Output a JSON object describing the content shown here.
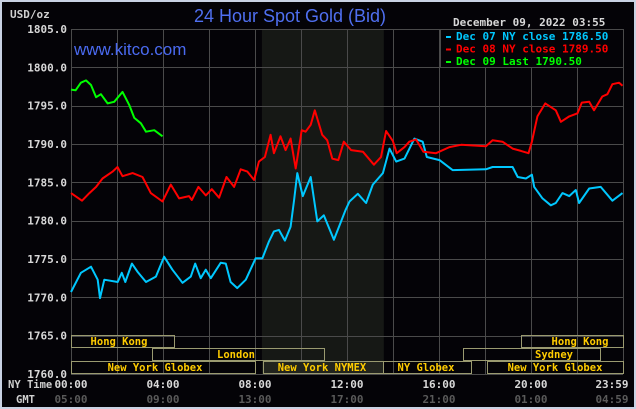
{
  "chart_data": {
    "type": "line",
    "title": "24 Hour Spot Gold (Bid)",
    "unit_label": "USD/oz",
    "watermark": "www.kitco.com",
    "timestamp": "December 09, 2022 03:55",
    "x_row_labels": [
      "NY Time",
      "GMT"
    ],
    "x_ticks_ny": [
      "00:00",
      "04:00",
      "08:00",
      "12:00",
      "16:00",
      "20:00",
      "23:59"
    ],
    "x_ticks_gmt": [
      "05:00",
      "09:00",
      "13:00",
      "17:00",
      "21:00",
      "01:00",
      "04:59"
    ],
    "xlim_hours": [
      0,
      24
    ],
    "ylim": [
      1760,
      1805
    ],
    "y_ticks": [
      "1805.0",
      "1800.0",
      "1795.0",
      "1790.0",
      "1785.0",
      "1780.0",
      "1775.0",
      "1770.0",
      "1765.0",
      "1760.0"
    ],
    "grid": true,
    "legend_position": "top-right",
    "highlight_region_hours": [
      8.3,
      13.6
    ],
    "colors": {
      "background": "#040307",
      "grid": "#4a4a4a",
      "title": "#4f6ff0",
      "session_text": "#ffcc00",
      "session_border": "#9a9a70"
    },
    "sessions": {
      "hong_kong": "Hong Kong",
      "london": "London",
      "ny_globex": "New York Globex",
      "ny_nymex": "New York NYMEX",
      "ny_globex_short": "NY Globex",
      "sydney": "Sydney",
      "hong_kong_2": "Hong Kong",
      "ny_globex_2": "New York Globex"
    },
    "series": [
      {
        "name": "Dec 07 NY close 1786.50",
        "color": "#00c8ff",
        "x": [
          0,
          0.43,
          0.87,
          1.16,
          1.26,
          1.45,
          2.03,
          2.21,
          2.36,
          2.65,
          2.9,
          3.26,
          3.69,
          4.05,
          4.41,
          4.85,
          5.21,
          5.4,
          5.64,
          5.86,
          6.08,
          6.51,
          6.73,
          6.94,
          7.23,
          7.6,
          8.03,
          8.32,
          8.61,
          8.82,
          9.04,
          9.3,
          9.55,
          9.7,
          9.84,
          10.08,
          10.42,
          10.71,
          10.99,
          11.43,
          11.94,
          12.11,
          12.47,
          12.83,
          13.12,
          13.56,
          13.85,
          14.14,
          14.5,
          14.93,
          15.29,
          15.47,
          16.02,
          16.59,
          18.04,
          18.33,
          18.62,
          19.2,
          19.42,
          19.78,
          20.04,
          20.14,
          20.5,
          20.86,
          21.08,
          21.37,
          21.66,
          21.95,
          22.09,
          22.53,
          23.03,
          23.54,
          23.98
        ],
        "y": [
          1770.7,
          1773.2,
          1774.0,
          1772.3,
          1769.9,
          1772.3,
          1772.0,
          1773.2,
          1772.0,
          1774.4,
          1773.3,
          1772.0,
          1772.7,
          1775.3,
          1773.6,
          1771.9,
          1772.7,
          1774.4,
          1772.5,
          1773.6,
          1772.5,
          1774.5,
          1774.4,
          1772.0,
          1771.2,
          1772.3,
          1775.1,
          1775.1,
          1777.3,
          1778.6,
          1778.8,
          1777.4,
          1779.2,
          1782.7,
          1786.2,
          1783.2,
          1785.7,
          1779.9,
          1780.7,
          1777.5,
          1781.4,
          1782.5,
          1783.5,
          1782.3,
          1784.7,
          1786.2,
          1789.4,
          1787.7,
          1788.1,
          1790.7,
          1790.3,
          1788.3,
          1787.9,
          1786.6,
          1786.7,
          1787.0,
          1787.0,
          1787.0,
          1785.7,
          1785.5,
          1786.0,
          1784.4,
          1782.9,
          1782.0,
          1782.3,
          1783.6,
          1783.2,
          1784.0,
          1782.3,
          1784.2,
          1784.4,
          1782.6,
          1783.6
        ]
      },
      {
        "name": "Dec 08 NY close 1789.50",
        "color": "#ff0000",
        "x": [
          0,
          0.48,
          0.8,
          1.09,
          1.37,
          1.81,
          2.02,
          2.24,
          2.68,
          3.11,
          3.47,
          3.98,
          4.34,
          4.7,
          5.13,
          5.25,
          5.54,
          5.86,
          6.12,
          6.44,
          6.76,
          7.09,
          7.38,
          7.67,
          7.96,
          8.17,
          8.43,
          8.68,
          8.82,
          9.11,
          9.33,
          9.55,
          9.77,
          10.03,
          10.2,
          10.42,
          10.6,
          10.92,
          11.14,
          11.36,
          11.62,
          11.86,
          12.18,
          12.69,
          13.17,
          13.48,
          13.7,
          13.99,
          14.16,
          14.5,
          14.71,
          15.0,
          15.32,
          15.87,
          16.45,
          16.96,
          18.04,
          18.33,
          18.76,
          19.2,
          19.56,
          19.89,
          20.04,
          20.28,
          20.62,
          21.08,
          21.3,
          21.66,
          22.02,
          22.21,
          22.53,
          22.74,
          23.1,
          23.32,
          23.54,
          23.83,
          23.98
        ],
        "y": [
          1783.6,
          1782.6,
          1783.6,
          1784.4,
          1785.5,
          1786.4,
          1787.0,
          1785.8,
          1786.2,
          1785.7,
          1783.6,
          1782.5,
          1784.7,
          1782.9,
          1783.2,
          1782.7,
          1784.4,
          1783.3,
          1784.1,
          1783.0,
          1785.7,
          1784.4,
          1786.7,
          1786.4,
          1785.3,
          1787.7,
          1788.3,
          1791.2,
          1788.8,
          1791.0,
          1789.2,
          1790.7,
          1786.8,
          1791.8,
          1791.6,
          1792.5,
          1794.4,
          1791.2,
          1790.5,
          1788.1,
          1787.9,
          1790.3,
          1789.2,
          1789.0,
          1787.3,
          1788.3,
          1791.7,
          1790.4,
          1788.8,
          1789.6,
          1790.3,
          1790.6,
          1789.0,
          1788.8,
          1789.6,
          1789.9,
          1789.7,
          1790.5,
          1790.3,
          1789.4,
          1789.1,
          1788.8,
          1790.3,
          1793.6,
          1795.3,
          1794.4,
          1792.9,
          1793.6,
          1794.0,
          1795.4,
          1795.5,
          1794.4,
          1796.2,
          1796.5,
          1797.8,
          1798.0,
          1797.6
        ]
      },
      {
        "name": "Dec 09 Last 1790.50",
        "color": "#00ff00",
        "x": [
          0,
          0.2,
          0.43,
          0.65,
          0.87,
          1.09,
          1.3,
          1.59,
          1.88,
          2.24,
          2.53,
          2.75,
          3.04,
          3.26,
          3.62,
          3.98
        ],
        "y": [
          1797.1,
          1797.0,
          1798.0,
          1798.3,
          1797.7,
          1796.1,
          1796.5,
          1795.3,
          1795.5,
          1796.8,
          1795.1,
          1793.4,
          1792.7,
          1791.6,
          1791.8,
          1791.0
        ]
      }
    ]
  }
}
